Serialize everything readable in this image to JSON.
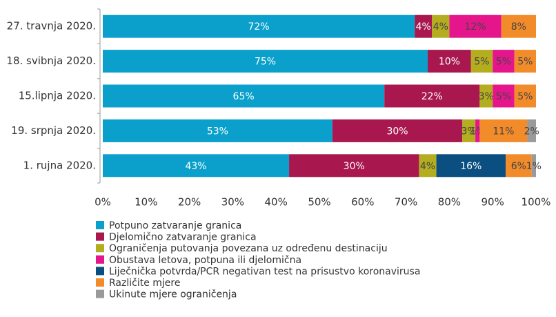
{
  "chart_data": {
    "type": "stacked-barh",
    "categories": [
      "27. travnja 2020.",
      "18. svibnja 2020.",
      "15.lipnja 2020.",
      "19. srpnja 2020.",
      "1. rujna 2020."
    ],
    "series": [
      {
        "name": "Potpuno zatvaranje granica",
        "color": "#0aa0cb",
        "values": [
          72,
          75,
          65,
          53,
          43
        ],
        "value_labels": [
          "72%",
          "75%",
          "65%",
          "53%",
          "43%"
        ]
      },
      {
        "name": "Djelomično zatvaranje granica",
        "color": "#a8184f",
        "values": [
          4,
          10,
          22,
          30,
          30
        ],
        "value_labels": [
          "4%",
          "10%",
          "22%",
          "30%",
          "30%"
        ]
      },
      {
        "name": "Ograničenja putovanja povezana uz određenu destinaciju",
        "color": "#b3ad1f",
        "values": [
          4,
          5,
          3,
          3,
          4
        ],
        "value_labels": [
          "4%",
          "5%",
          "3%",
          "3%",
          "4%"
        ]
      },
      {
        "name": "Obustava letova, potpuna ili djelomična",
        "color": "#e5168c",
        "values": [
          12,
          5,
          5,
          1,
          0
        ],
        "value_labels": [
          "12%",
          "5%",
          "5%",
          "1%",
          null
        ]
      },
      {
        "name": "Liječnička potvrda/PCR negativan test na prisustvo koronavirusa",
        "color": "#0b4e80",
        "values": [
          0,
          0,
          0,
          0,
          16
        ],
        "value_labels": [
          null,
          null,
          null,
          null,
          "16%"
        ]
      },
      {
        "name": "Različite mjere",
        "color": "#f28b2a",
        "values": [
          8,
          5,
          5,
          11,
          6
        ],
        "value_labels": [
          "8%",
          "5%",
          "5%",
          "11%",
          "6%"
        ]
      },
      {
        "name": "Ukinute mjere ograničenja",
        "color": "#9a9a9a",
        "values": [
          0,
          0,
          0,
          2,
          1
        ],
        "value_labels": [
          null,
          null,
          null,
          "2%",
          "1%"
        ]
      }
    ],
    "xlim": [
      0,
      100
    ],
    "xticks": [
      {
        "value": 0,
        "label": "0%"
      },
      {
        "value": 10,
        "label": "10%"
      },
      {
        "value": 20,
        "label": "20%"
      },
      {
        "value": 30,
        "label": "30%"
      },
      {
        "value": 40,
        "label": "40%"
      },
      {
        "value": 50,
        "label": "50%"
      },
      {
        "value": 60,
        "label": "60%"
      },
      {
        "value": 70,
        "label": "70%"
      },
      {
        "value": 80,
        "label": "80%"
      },
      {
        "value": 90,
        "label": "90%"
      },
      {
        "value": 100,
        "label": "100%"
      }
    ],
    "legend": "bottom-left"
  }
}
